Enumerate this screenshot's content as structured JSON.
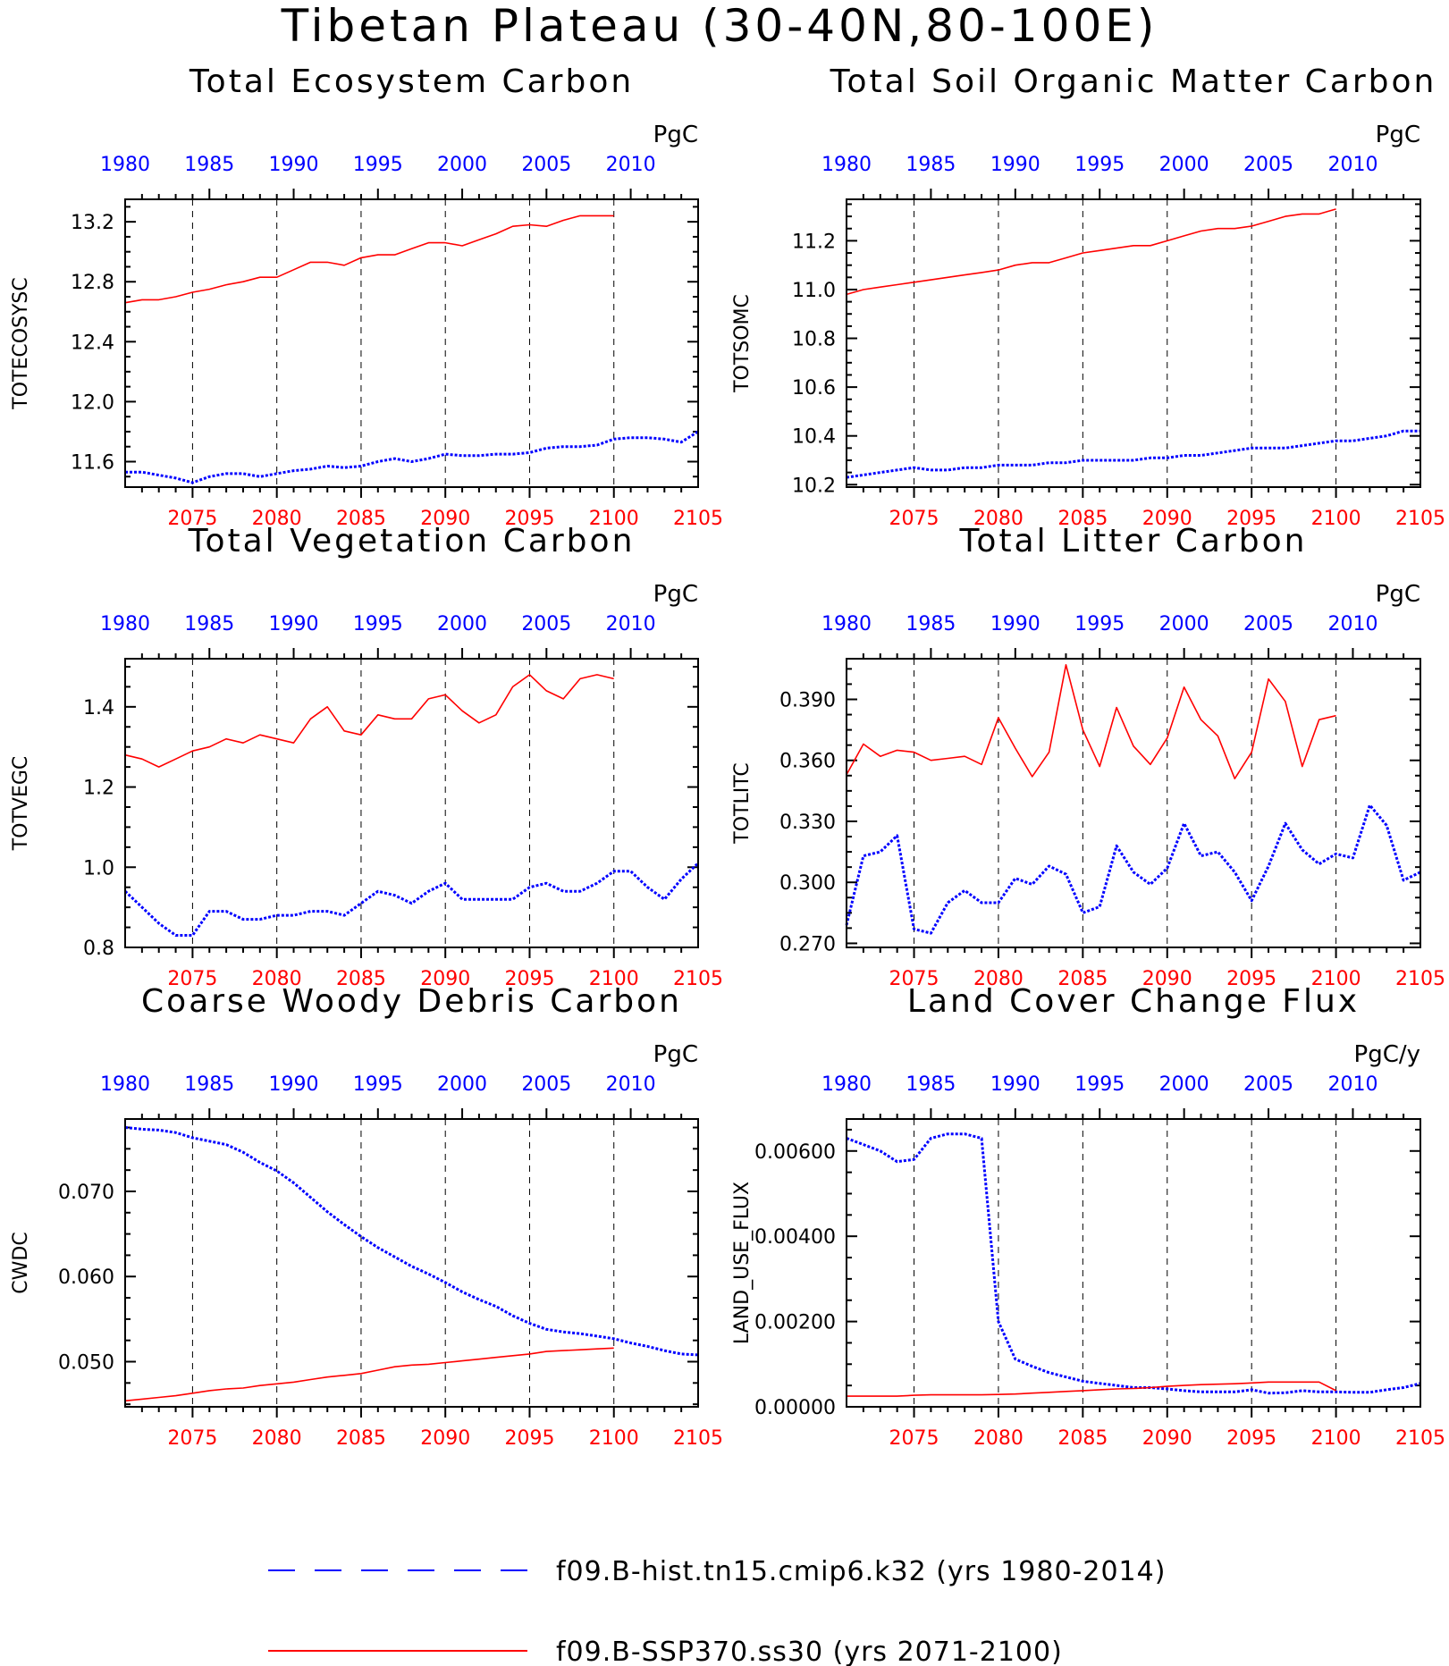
{
  "figure": {
    "title": "Tibetan Plateau (30-40N,80-100E)",
    "top_axis_ticks": [
      "1980",
      "1985",
      "1990",
      "1995",
      "2000",
      "2005",
      "2010"
    ],
    "bottom_axis_ticks": [
      "2075",
      "2080",
      "2085",
      "2090",
      "2095",
      "2100",
      "2105"
    ],
    "legend": [
      {
        "label": "f09.B-hist.tn15.cmip6.k32 (yrs 1980-2014)",
        "color": "#0000ff",
        "style": "dashed"
      },
      {
        "label": "f09.B-SSP370.ss30 (yrs 2071-2100)",
        "color": "#ff0000",
        "style": "solid"
      }
    ]
  },
  "chart_data": [
    {
      "type": "line",
      "title": "Total Ecosystem Carbon",
      "ylabel": "TOTECOSYSC",
      "units": "PgC",
      "ylim": [
        11.43,
        13.35
      ],
      "yticks": [
        11.6,
        12.0,
        12.4,
        12.8,
        13.2
      ],
      "ytick_labels": [
        "11.6",
        "12.0",
        "12.4",
        "12.8",
        "13.2"
      ],
      "x_bottom_range": [
        2071,
        2105
      ],
      "x_top_range": [
        1980,
        2014
      ],
      "series": [
        {
          "color": "#0000ff",
          "style": "dashed",
          "x_axis": "top",
          "x_start": 1980,
          "values": [
            11.53,
            11.53,
            11.51,
            11.49,
            11.46,
            11.5,
            11.52,
            11.52,
            11.5,
            11.52,
            11.54,
            11.55,
            11.57,
            11.56,
            11.57,
            11.6,
            11.62,
            11.6,
            11.62,
            11.65,
            11.64,
            11.64,
            11.65,
            11.65,
            11.66,
            11.69,
            11.7,
            11.7,
            11.71,
            11.75,
            11.76,
            11.76,
            11.75,
            11.73,
            11.8
          ]
        },
        {
          "color": "#ff0000",
          "style": "solid",
          "x_axis": "bottom",
          "x_start": 2071,
          "values": [
            12.66,
            12.68,
            12.68,
            12.7,
            12.73,
            12.75,
            12.78,
            12.8,
            12.83,
            12.83,
            12.88,
            12.93,
            12.93,
            12.91,
            12.96,
            12.98,
            12.98,
            13.02,
            13.06,
            13.06,
            13.04,
            13.08,
            13.12,
            13.17,
            13.18,
            13.17,
            13.21,
            13.24,
            13.24,
            13.24
          ]
        }
      ]
    },
    {
      "type": "line",
      "title": "Total Soil Organic Matter Carbon",
      "ylabel": "TOTSOMC",
      "units": "PgC",
      "ylim": [
        10.19,
        11.37
      ],
      "yticks": [
        10.2,
        10.4,
        10.6,
        10.8,
        11.0,
        11.2
      ],
      "ytick_labels": [
        "10.2",
        "10.4",
        "10.6",
        "10.8",
        "11.0",
        "11.2"
      ],
      "x_bottom_range": [
        2071,
        2105
      ],
      "x_top_range": [
        1980,
        2014
      ],
      "series": [
        {
          "color": "#0000ff",
          "style": "dashed",
          "x_axis": "top",
          "x_start": 1980,
          "values": [
            10.23,
            10.24,
            10.25,
            10.26,
            10.27,
            10.26,
            10.26,
            10.27,
            10.27,
            10.28,
            10.28,
            10.28,
            10.29,
            10.29,
            10.3,
            10.3,
            10.3,
            10.3,
            10.31,
            10.31,
            10.32,
            10.32,
            10.33,
            10.34,
            10.35,
            10.35,
            10.35,
            10.36,
            10.37,
            10.38,
            10.38,
            10.39,
            10.4,
            10.42,
            10.42
          ]
        },
        {
          "color": "#ff0000",
          "style": "solid",
          "x_axis": "bottom",
          "x_start": 2071,
          "values": [
            10.98,
            11.0,
            11.01,
            11.02,
            11.03,
            11.04,
            11.05,
            11.06,
            11.07,
            11.08,
            11.1,
            11.11,
            11.11,
            11.13,
            11.15,
            11.16,
            11.17,
            11.18,
            11.18,
            11.2,
            11.22,
            11.24,
            11.25,
            11.25,
            11.26,
            11.28,
            11.3,
            11.31,
            11.31,
            11.33
          ]
        }
      ]
    },
    {
      "type": "line",
      "title": "Total Vegetation Carbon",
      "ylabel": "TOTVEGC",
      "units": "PgC",
      "ylim": [
        0.8,
        1.52
      ],
      "yticks": [
        0.8,
        1.0,
        1.2,
        1.4
      ],
      "ytick_labels": [
        "0.8",
        "1.0",
        "1.2",
        "1.4"
      ],
      "x_bottom_range": [
        2071,
        2105
      ],
      "x_top_range": [
        1980,
        2014
      ],
      "series": [
        {
          "color": "#0000ff",
          "style": "dashed",
          "x_axis": "top",
          "x_start": 1980,
          "values": [
            0.94,
            0.9,
            0.86,
            0.83,
            0.83,
            0.89,
            0.89,
            0.87,
            0.87,
            0.88,
            0.88,
            0.89,
            0.89,
            0.88,
            0.91,
            0.94,
            0.93,
            0.91,
            0.94,
            0.96,
            0.92,
            0.92,
            0.92,
            0.92,
            0.95,
            0.96,
            0.94,
            0.94,
            0.96,
            0.99,
            0.99,
            0.95,
            0.92,
            0.97,
            1.01
          ]
        },
        {
          "color": "#ff0000",
          "style": "solid",
          "x_axis": "bottom",
          "x_start": 2071,
          "values": [
            1.28,
            1.27,
            1.25,
            1.27,
            1.29,
            1.3,
            1.32,
            1.31,
            1.33,
            1.32,
            1.31,
            1.37,
            1.4,
            1.34,
            1.33,
            1.38,
            1.37,
            1.37,
            1.42,
            1.43,
            1.39,
            1.36,
            1.38,
            1.45,
            1.48,
            1.44,
            1.42,
            1.47,
            1.48,
            1.47
          ]
        }
      ]
    },
    {
      "type": "line",
      "title": "Total Litter Carbon",
      "ylabel": "TOTLITC",
      "units": "PgC",
      "ylim": [
        0.268,
        0.41
      ],
      "yticks": [
        0.27,
        0.3,
        0.33,
        0.36,
        0.39
      ],
      "ytick_labels": [
        "0.270",
        "0.300",
        "0.330",
        "0.360",
        "0.390"
      ],
      "x_bottom_range": [
        2071,
        2105
      ],
      "x_top_range": [
        1980,
        2014
      ],
      "series": [
        {
          "color": "#0000ff",
          "style": "dashed",
          "x_axis": "top",
          "x_start": 1980,
          "values": [
            0.279,
            0.313,
            0.315,
            0.323,
            0.277,
            0.275,
            0.29,
            0.296,
            0.29,
            0.29,
            0.302,
            0.299,
            0.308,
            0.304,
            0.285,
            0.288,
            0.318,
            0.305,
            0.299,
            0.307,
            0.329,
            0.313,
            0.315,
            0.305,
            0.291,
            0.308,
            0.329,
            0.316,
            0.309,
            0.314,
            0.312,
            0.338,
            0.328,
            0.301,
            0.305
          ]
        },
        {
          "color": "#ff0000",
          "style": "solid",
          "x_axis": "bottom",
          "x_start": 2071,
          "values": [
            0.353,
            0.368,
            0.362,
            0.365,
            0.364,
            0.36,
            0.361,
            0.362,
            0.358,
            0.381,
            0.366,
            0.352,
            0.364,
            0.407,
            0.375,
            0.357,
            0.386,
            0.367,
            0.358,
            0.371,
            0.396,
            0.38,
            0.372,
            0.351,
            0.364,
            0.4,
            0.389,
            0.357,
            0.38,
            0.382
          ]
        }
      ]
    },
    {
      "type": "line",
      "title": "Coarse Woody Debris Carbon",
      "ylabel": "CWDC",
      "units": "PgC",
      "ylim": [
        0.0447,
        0.0785
      ],
      "yticks": [
        0.05,
        0.06,
        0.07
      ],
      "ytick_labels": [
        "0.050",
        "0.060",
        "0.070"
      ],
      "x_bottom_range": [
        2071,
        2105
      ],
      "x_top_range": [
        1980,
        2014
      ],
      "series": [
        {
          "color": "#0000ff",
          "style": "dashed",
          "x_axis": "top",
          "x_start": 1980,
          "values": [
            0.0775,
            0.0773,
            0.0772,
            0.0769,
            0.0763,
            0.0759,
            0.0755,
            0.0746,
            0.0734,
            0.0724,
            0.071,
            0.0693,
            0.0676,
            0.0661,
            0.0647,
            0.0634,
            0.0623,
            0.0612,
            0.0603,
            0.0593,
            0.0582,
            0.0573,
            0.0565,
            0.0554,
            0.0545,
            0.0538,
            0.0535,
            0.0533,
            0.053,
            0.0527,
            0.0522,
            0.0518,
            0.0513,
            0.0509,
            0.0508
          ]
        },
        {
          "color": "#ff0000",
          "style": "solid",
          "x_axis": "bottom",
          "x_start": 2071,
          "values": [
            0.0454,
            0.0456,
            0.0458,
            0.046,
            0.0463,
            0.0466,
            0.0468,
            0.0469,
            0.0472,
            0.0474,
            0.0476,
            0.0479,
            0.0482,
            0.0484,
            0.0486,
            0.049,
            0.0494,
            0.0496,
            0.0497,
            0.0499,
            0.0501,
            0.0503,
            0.0505,
            0.0507,
            0.0509,
            0.0512,
            0.0513,
            0.0514,
            0.0515,
            0.0516
          ]
        }
      ]
    },
    {
      "type": "line",
      "title": "Land Cover Change Flux",
      "ylabel": "LAND_USE_FLUX",
      "units": "PgC/y",
      "ylim": [
        0.0,
        0.00675
      ],
      "yticks": [
        0.0,
        0.002,
        0.004,
        0.006
      ],
      "ytick_labels": [
        "0.00000",
        "0.00200",
        "0.00400",
        "0.00600"
      ],
      "x_bottom_range": [
        2071,
        2105
      ],
      "x_top_range": [
        1980,
        2014
      ],
      "series": [
        {
          "color": "#0000ff",
          "style": "dashed",
          "x_axis": "top",
          "x_start": 1980,
          "values": [
            0.0063,
            0.00615,
            0.006,
            0.00575,
            0.0058,
            0.0063,
            0.0064,
            0.0064,
            0.0063,
            0.002,
            0.00112,
            0.00095,
            0.0008,
            0.0007,
            0.0006,
            0.00055,
            0.0005,
            0.00045,
            0.00045,
            0.00042,
            0.00038,
            0.00035,
            0.00035,
            0.00035,
            0.0004,
            0.00032,
            0.00033,
            0.00038,
            0.00035,
            0.00035,
            0.00034,
            0.00034,
            0.0004,
            0.00045,
            0.00055
          ]
        },
        {
          "color": "#ff0000",
          "style": "solid",
          "x_axis": "bottom",
          "x_start": 2071,
          "values": [
            0.00025,
            0.00025,
            0.00025,
            0.00025,
            0.00027,
            0.00028,
            0.00028,
            0.00028,
            0.00028,
            0.00029,
            0.0003,
            0.00032,
            0.00034,
            0.00036,
            0.00038,
            0.0004,
            0.00042,
            0.00043,
            0.00045,
            0.00048,
            0.0005,
            0.00052,
            0.00053,
            0.00054,
            0.00056,
            0.00058,
            0.00058,
            0.00058,
            0.00058,
            0.00038
          ]
        }
      ]
    }
  ]
}
